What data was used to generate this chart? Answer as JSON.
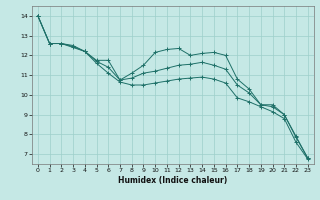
{
  "xlabel": "Humidex (Indice chaleur)",
  "background_color": "#c5e8e5",
  "grid_color": "#9ecfca",
  "line_color": "#1e7068",
  "ylim": [
    6.5,
    14.5
  ],
  "xlim": [
    -0.5,
    23.5
  ],
  "yticks": [
    7,
    8,
    9,
    10,
    11,
    12,
    13,
    14
  ],
  "xticks": [
    0,
    1,
    2,
    3,
    4,
    5,
    6,
    7,
    8,
    9,
    10,
    11,
    12,
    13,
    14,
    15,
    16,
    17,
    18,
    19,
    20,
    21,
    22,
    23
  ],
  "series": [
    [
      14.0,
      12.6,
      12.6,
      12.5,
      12.2,
      11.75,
      11.75,
      10.75,
      11.1,
      11.5,
      12.15,
      12.3,
      12.35,
      12.0,
      12.1,
      12.15,
      12.0,
      10.8,
      10.3,
      9.5,
      9.5,
      9.0,
      7.9,
      6.8
    ],
    [
      14.0,
      12.6,
      12.6,
      12.45,
      12.2,
      11.7,
      11.4,
      10.75,
      10.85,
      11.1,
      11.2,
      11.35,
      11.5,
      11.55,
      11.65,
      11.5,
      11.3,
      10.5,
      10.1,
      9.5,
      9.4,
      9.0,
      7.85,
      6.8
    ],
    [
      14.0,
      12.6,
      12.6,
      12.4,
      12.2,
      11.6,
      11.1,
      10.65,
      10.5,
      10.5,
      10.6,
      10.7,
      10.8,
      10.85,
      10.9,
      10.8,
      10.6,
      9.85,
      9.65,
      9.4,
      9.15,
      8.8,
      7.6,
      6.75
    ]
  ]
}
